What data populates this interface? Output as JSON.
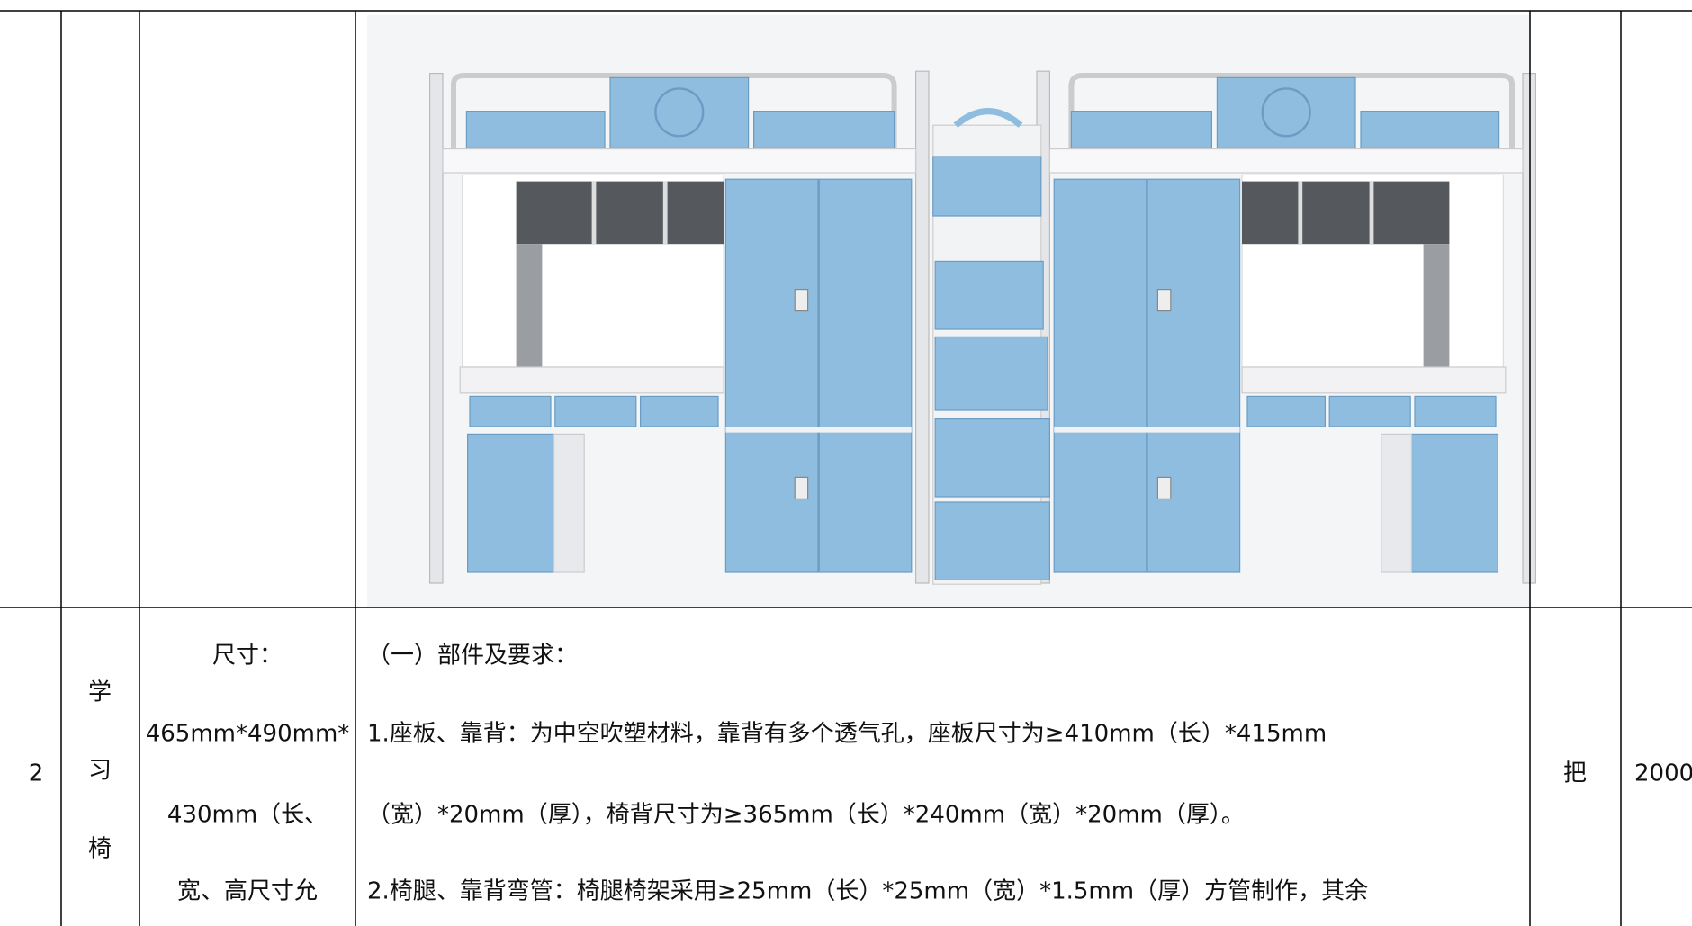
{
  "table": {
    "rows": [
      {
        "index": null
      },
      {
        "index": "2",
        "name_lines": [
          "学",
          "习",
          "椅"
        ],
        "size_lines": [
          "尺寸：",
          "465mm*490mm*",
          "430mm（长、",
          "宽、高尺寸允"
        ],
        "description_lines": [
          "（一）部件及要求：",
          "1.座板、靠背：为中空吹塑材料，靠背有多个透气孔，座板尺寸为≥410mm（长）*415mm",
          "（宽）*20mm（厚），椅背尺寸为≥365mm（长）*240mm（宽）*20mm（厚）。",
          "2.椅腿、靠背弯管：椅腿椅架采用≥25mm（长）*25mm（宽）*1.5mm（厚）方管制作，其余"
        ],
        "unit": "把",
        "quantity": "2000"
      }
    ]
  }
}
